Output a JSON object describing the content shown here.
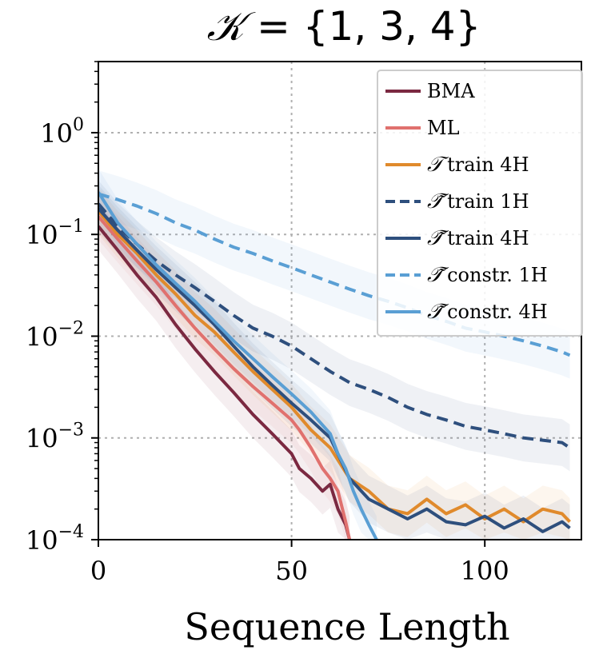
{
  "chart_data": {
    "type": "line",
    "title_prefix": "𝒦",
    "title_rest": " = {1, 3, 4}",
    "xlabel": "Sequence Length",
    "ylabel": "",
    "xlim": [
      0,
      125
    ],
    "ylim": [
      0.0001,
      5
    ],
    "yscale": "log",
    "grid": true,
    "legend_position": "top-right",
    "x_ticks": [
      0,
      50,
      100
    ],
    "x_tick_labels": [
      "0",
      "50",
      "100"
    ],
    "y_ticks": [
      1,
      0.1,
      0.01,
      0.001,
      0.0001
    ],
    "y_tick_labels": [
      {
        "base": "10",
        "exp": "0"
      },
      {
        "base": "10",
        "exp": "−1"
      },
      {
        "base": "10",
        "exp": "−2"
      },
      {
        "base": "10",
        "exp": "−3"
      },
      {
        "base": "10",
        "exp": "−4"
      }
    ],
    "series": [
      {
        "name": "BMA",
        "color": "#7b2941",
        "dash": false,
        "x": [
          0,
          5,
          10,
          15,
          20,
          25,
          30,
          35,
          40,
          45,
          50,
          52,
          55,
          58,
          60,
          62,
          64,
          65
        ],
        "y": [
          0.12,
          0.07,
          0.04,
          0.024,
          0.013,
          0.0075,
          0.0045,
          0.0028,
          0.0017,
          0.0011,
          0.0007,
          0.0005,
          0.0004,
          0.0003,
          0.00035,
          0.0002,
          0.00014,
          0.0001
        ]
      },
      {
        "name": "ML",
        "color": "#e0716e",
        "dash": false,
        "x": [
          0,
          5,
          10,
          15,
          20,
          25,
          30,
          35,
          40,
          45,
          50,
          52,
          55,
          58,
          60,
          62,
          64,
          65
        ],
        "y": [
          0.15,
          0.09,
          0.055,
          0.034,
          0.02,
          0.012,
          0.0075,
          0.0048,
          0.0032,
          0.0022,
          0.0015,
          0.0012,
          0.0008,
          0.0005,
          0.0004,
          0.0003,
          0.00015,
          0.0001
        ]
      },
      {
        "name": "train 4H",
        "color": "#e08a2c",
        "dash": false,
        "x": [
          0,
          5,
          10,
          15,
          20,
          25,
          30,
          35,
          40,
          45,
          50,
          55,
          60,
          65,
          70,
          75,
          80,
          85,
          90,
          95,
          100,
          105,
          110,
          115,
          120,
          122
        ],
        "y": [
          0.17,
          0.1,
          0.065,
          0.04,
          0.026,
          0.016,
          0.011,
          0.007,
          0.0045,
          0.003,
          0.002,
          0.0012,
          0.0008,
          0.0004,
          0.0003,
          0.0002,
          0.00018,
          0.00025,
          0.00018,
          0.00022,
          0.00016,
          0.0002,
          0.00015,
          0.0002,
          0.00018,
          0.00015
        ]
      },
      {
        "name": "train 1H",
        "color": "#2e4f7d",
        "dash": true,
        "x": [
          0,
          5,
          10,
          15,
          20,
          25,
          30,
          35,
          40,
          45,
          50,
          55,
          60,
          65,
          70,
          75,
          80,
          85,
          90,
          95,
          100,
          105,
          110,
          115,
          120,
          122
        ],
        "y": [
          0.2,
          0.12,
          0.08,
          0.055,
          0.04,
          0.03,
          0.022,
          0.016,
          0.012,
          0.01,
          0.008,
          0.006,
          0.0045,
          0.0035,
          0.003,
          0.0025,
          0.002,
          0.0017,
          0.0015,
          0.0013,
          0.0012,
          0.0011,
          0.001,
          0.00095,
          0.0009,
          0.0008
        ]
      },
      {
        "name": "train 4H",
        "color": "#2e4f7d",
        "dash": false,
        "x": [
          0,
          5,
          10,
          15,
          20,
          25,
          30,
          35,
          40,
          45,
          50,
          55,
          60,
          65,
          70,
          75,
          80,
          85,
          90,
          95,
          100,
          105,
          110,
          115,
          120,
          122
        ],
        "y": [
          0.18,
          0.11,
          0.07,
          0.045,
          0.03,
          0.02,
          0.013,
          0.008,
          0.005,
          0.0033,
          0.0022,
          0.0015,
          0.001,
          0.0004,
          0.00025,
          0.0002,
          0.00016,
          0.0002,
          0.00015,
          0.00014,
          0.00017,
          0.00013,
          0.00016,
          0.00012,
          0.00015,
          0.00013
        ]
      },
      {
        "name": "constr. 1H",
        "color": "#5a9fd4",
        "dash": true,
        "x": [
          0,
          5,
          10,
          15,
          20,
          25,
          30,
          35,
          40,
          45,
          50,
          55,
          60,
          65,
          70,
          75,
          80,
          85,
          90,
          95,
          100,
          105,
          110,
          115,
          120,
          122
        ],
        "y": [
          0.25,
          0.22,
          0.19,
          0.16,
          0.13,
          0.11,
          0.09,
          0.075,
          0.065,
          0.055,
          0.047,
          0.04,
          0.034,
          0.029,
          0.025,
          0.022,
          0.019,
          0.016,
          0.014,
          0.012,
          0.011,
          0.01,
          0.009,
          0.008,
          0.007,
          0.0065
        ]
      },
      {
        "name": "constr. 4H",
        "color": "#5a9fd4",
        "dash": false,
        "x": [
          0,
          5,
          10,
          15,
          20,
          25,
          30,
          35,
          40,
          45,
          50,
          55,
          60,
          62,
          64,
          66,
          68,
          70,
          72
        ],
        "y": [
          0.26,
          0.13,
          0.08,
          0.05,
          0.033,
          0.022,
          0.014,
          0.009,
          0.006,
          0.004,
          0.0027,
          0.0018,
          0.0011,
          0.0007,
          0.0005,
          0.0003,
          0.0002,
          0.00014,
          0.0001
        ]
      }
    ],
    "legend_glyphs": [
      "",
      "",
      "𝒯",
      "𝒯̃",
      "𝒯̃",
      "𝒯̃",
      "𝒯̃"
    ]
  }
}
